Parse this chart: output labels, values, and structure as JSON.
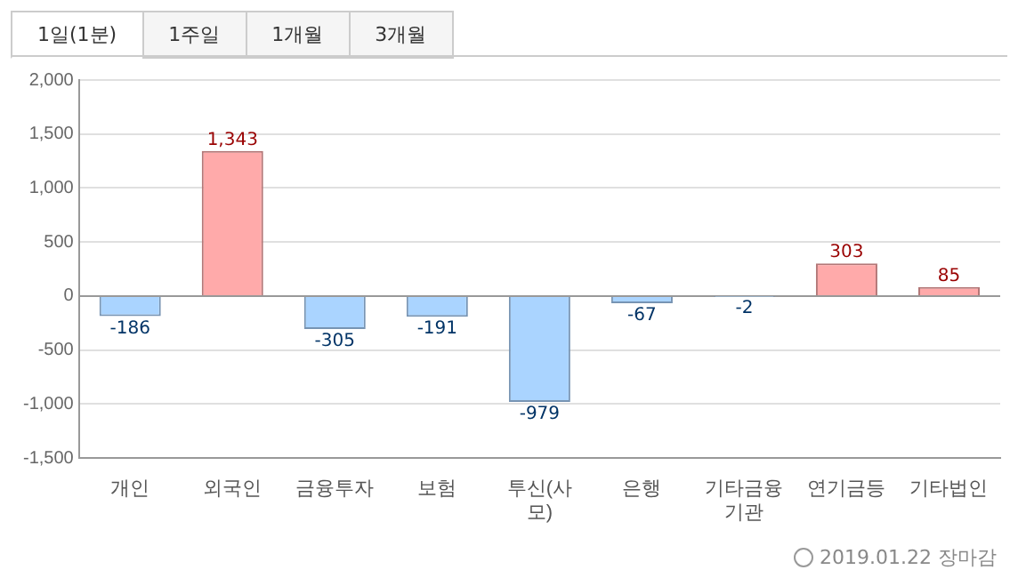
{
  "chart_data": {
    "type": "bar",
    "categories": [
      "개인",
      "외국인",
      "금융투자",
      "보험",
      "투신(사모)",
      "은행",
      "기타금융기관",
      "연기금등",
      "기타법인"
    ],
    "values": [
      -186,
      1343,
      -305,
      -191,
      -979,
      -67,
      -2,
      303,
      85
    ],
    "colors": [
      "#aad4ff",
      "#ffaaaa",
      "#aad4ff",
      "#aad4ff",
      "#aad4ff",
      "#aad4ff",
      "#aad4ff",
      "#ffaaaa",
      "#ffaaaa"
    ],
    "value_labels": [
      "-186",
      "1,343",
      "-305",
      "-191",
      "-979",
      "-67",
      "-2",
      "303",
      "85"
    ],
    "ylim": [
      -1500,
      2000
    ],
    "yticks": [
      {
        "value": -1500,
        "label": "-1,500"
      },
      {
        "value": -1000,
        "label": "-1,000"
      },
      -500,
      0,
      500,
      {
        "value": 1000,
        "label": "1,000"
      },
      {
        "value": 1500,
        "label": "1,500"
      },
      {
        "value": 2000,
        "label": "2,000"
      }
    ],
    "grid": "y",
    "legend": false,
    "annotations": [
      "1일(1분)",
      "1주일",
      "1개월",
      "3개월",
      "2019.01.22 장마감"
    ]
  }
}
